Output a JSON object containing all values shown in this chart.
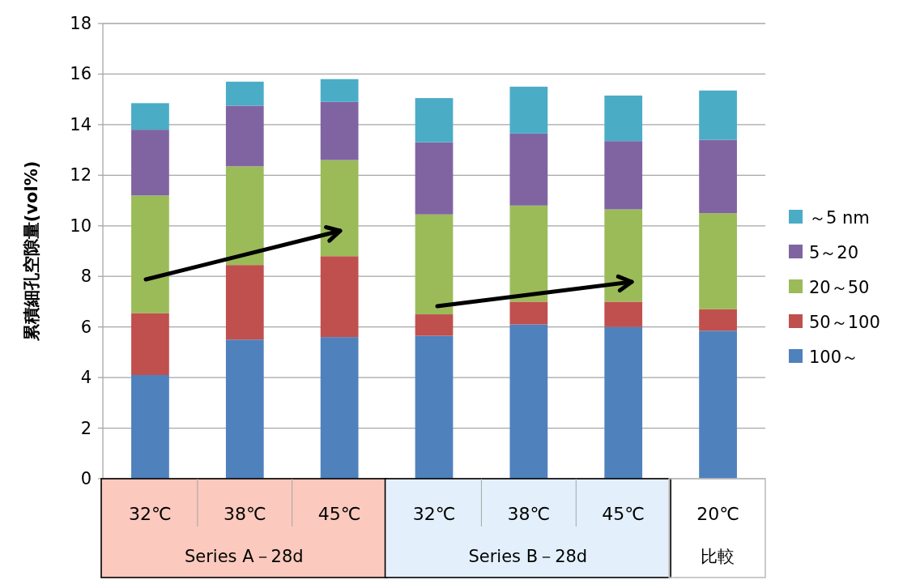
{
  "chart_data": {
    "type": "bar",
    "stacked": true,
    "ylabel": "累積細孔空隙量(vol%)",
    "categories": [
      "32℃",
      "38℃",
      "45℃",
      "32℃",
      "38℃",
      "45℃",
      "20℃"
    ],
    "annotations": [
      "Series A－28d",
      "Series B－28d",
      "比較"
    ],
    "series": [
      {
        "name": "100～",
        "color": "#4f81bd",
        "values": [
          4.1,
          5.5,
          5.6,
          5.65,
          6.1,
          6.0,
          5.85
        ]
      },
      {
        "name": "50～100",
        "color": "#c0504d",
        "values": [
          2.45,
          2.95,
          3.2,
          0.85,
          0.9,
          1.0,
          0.85
        ]
      },
      {
        "name": "20～50",
        "color": "#9bbb59",
        "values": [
          4.65,
          3.9,
          3.8,
          3.95,
          3.8,
          3.65,
          3.8
        ]
      },
      {
        "name": "5～20",
        "color": "#8064a2",
        "values": [
          2.6,
          2.4,
          2.3,
          2.85,
          2.85,
          2.7,
          2.9
        ]
      },
      {
        "name": "～5 nm",
        "color": "#4bacc6",
        "values": [
          1.05,
          0.95,
          0.9,
          1.75,
          1.85,
          1.8,
          1.95
        ]
      }
    ],
    "ylim": [
      0,
      18
    ],
    "yticks": [
      0,
      2,
      4,
      6,
      8,
      10,
      12,
      14,
      16,
      18
    ],
    "grid": "y",
    "legend": "right"
  }
}
